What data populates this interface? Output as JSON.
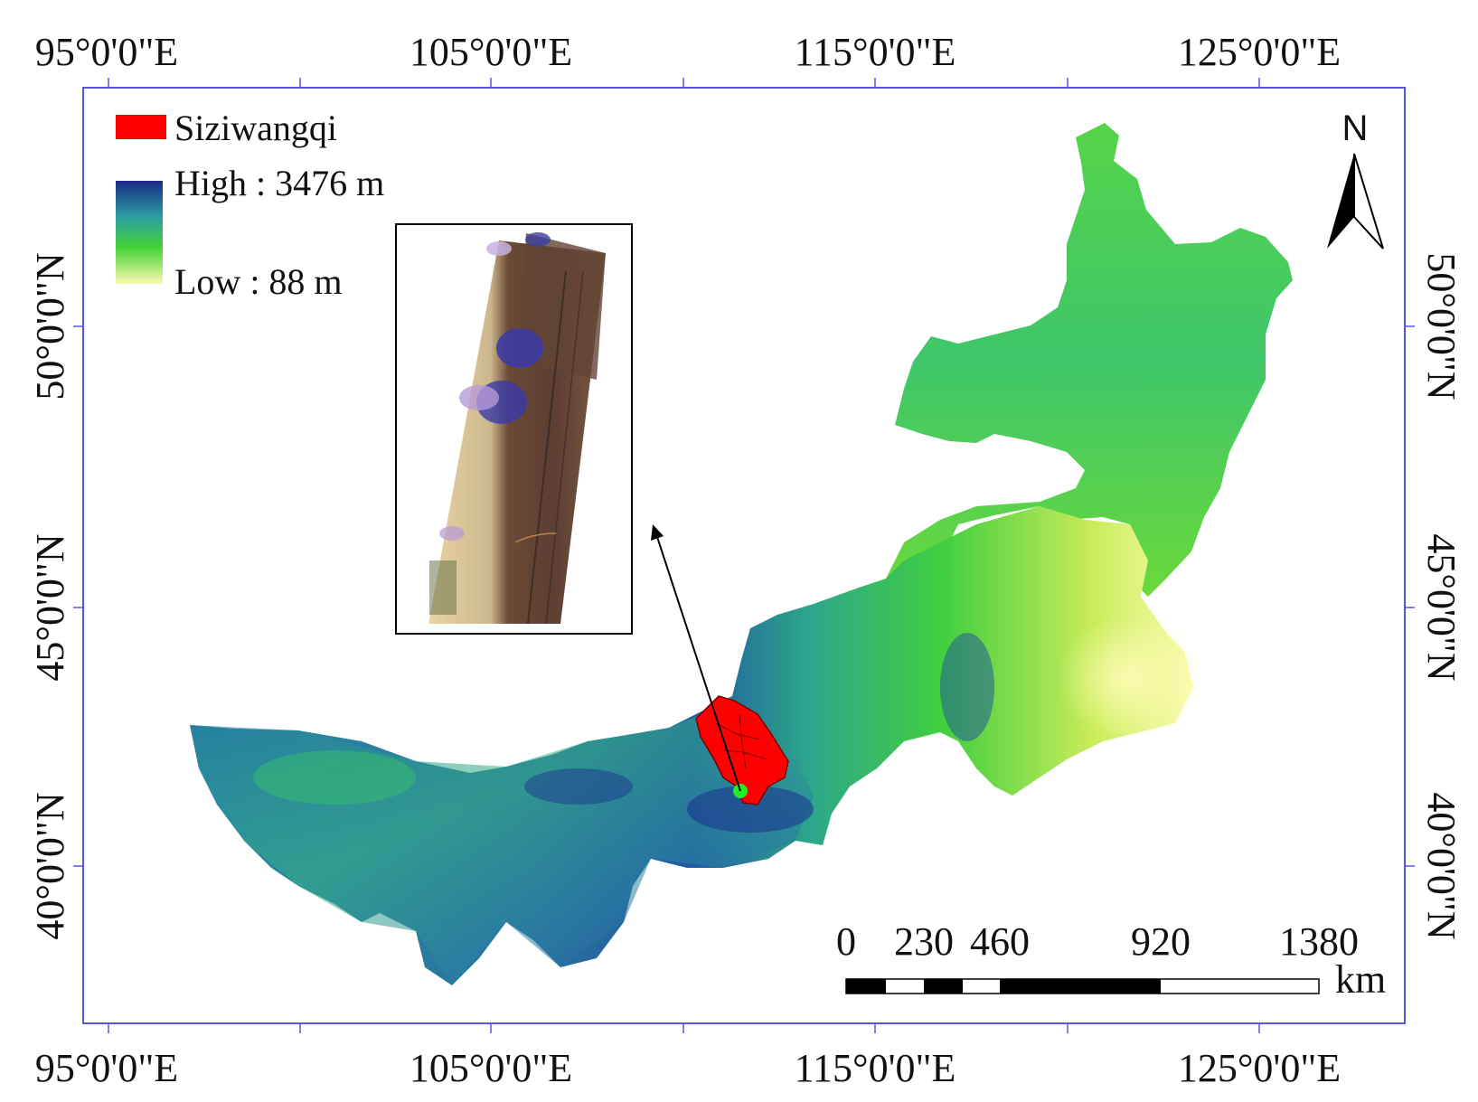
{
  "map": {
    "lon_labels": [
      "95°0'0\"E",
      "105°0'0\"E",
      "115°0'0\"E",
      "125°0'0\"E"
    ],
    "lat_labels": [
      "50°0'0\"N",
      "45°0'0\"N",
      "40°0'0\"N"
    ],
    "colors": {
      "region": "#ff0000",
      "elev_high": "#1a2a8a",
      "elev_mid": "#2fa38a",
      "elev_green": "#3ed23a",
      "elev_low": "#fbfbb0",
      "marker": "#22ee22",
      "frame": "#5555dd"
    }
  },
  "legend": {
    "region_label": "Siziwangqi",
    "high_label": "High : 3476 m",
    "low_label": "Low : 88 m"
  },
  "north_arrow": {
    "label": "N",
    "icon": "north-arrow-icon"
  },
  "scale_bar": {
    "ticks": [
      "0",
      "230",
      "460",
      "920",
      "1380"
    ],
    "unit": "km"
  },
  "inset": {
    "description_icon": "uav-mosaic-image"
  }
}
